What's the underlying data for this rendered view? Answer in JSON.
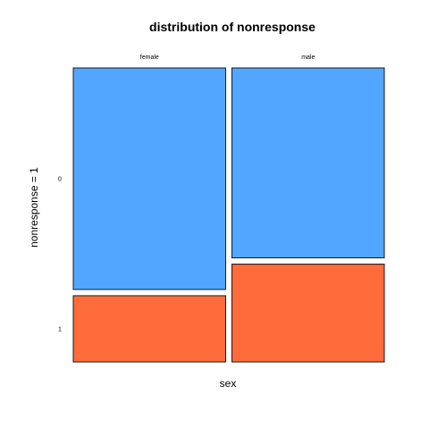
{
  "chart_data": {
    "type": "mosaic",
    "title": "distribution of nonresponse",
    "xlabel": "sex",
    "ylabel": "nonresponse = 1",
    "categories": [
      "female",
      "male"
    ],
    "column_shares": [
      0.5,
      0.5
    ],
    "levels": [
      "0",
      "1"
    ],
    "series": [
      {
        "name": "0",
        "color": "#52A6FF",
        "values": [
          0.77,
          0.66
        ]
      },
      {
        "name": "1",
        "color": "#FF6C3C",
        "values": [
          0.23,
          0.34
        ]
      }
    ],
    "grid": false,
    "legend": "none"
  }
}
